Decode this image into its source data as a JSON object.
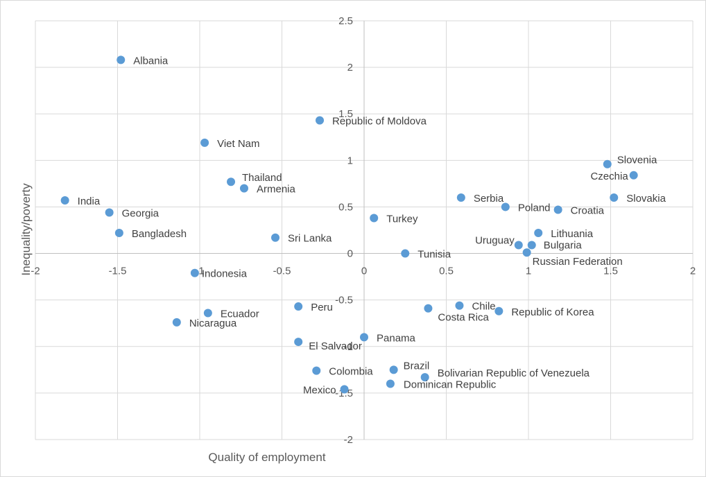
{
  "chart_data": {
    "type": "scatter",
    "title": "",
    "xlabel": "Quality of employment",
    "ylabel": "Inequality/poverty",
    "xlim": [
      -2,
      2
    ],
    "ylim": [
      -2,
      2.5
    ],
    "x_ticks": [
      "-2",
      "-1.5",
      "-1",
      "-0.5",
      "0",
      "0.5",
      "1",
      "1.5",
      "2"
    ],
    "y_ticks": [
      "2.5",
      "2",
      "1.5",
      "1",
      "0.5",
      "0",
      "-0.5",
      "-1",
      "-1.5",
      "-2"
    ],
    "grid": true,
    "marker_color": "#5b9bd5",
    "points": [
      {
        "label": "Albania",
        "x": -1.48,
        "y": 2.08
      },
      {
        "label": "Republic of Moldova",
        "x": -0.27,
        "y": 1.43
      },
      {
        "label": "Viet Nam",
        "x": -0.97,
        "y": 1.19
      },
      {
        "label": "Thailand",
        "x": -0.81,
        "y": 0.77
      },
      {
        "label": "Armenia",
        "x": -0.73,
        "y": 0.7
      },
      {
        "label": "India",
        "x": -1.82,
        "y": 0.57
      },
      {
        "label": "Georgia",
        "x": -1.55,
        "y": 0.44
      },
      {
        "label": "Bangladesh",
        "x": -1.49,
        "y": 0.22
      },
      {
        "label": "Sri Lanka",
        "x": -0.54,
        "y": 0.17
      },
      {
        "label": "Turkey",
        "x": 0.06,
        "y": 0.38
      },
      {
        "label": "Tunisia",
        "x": 0.25,
        "y": 0.0
      },
      {
        "label": "Serbia",
        "x": 0.59,
        "y": 0.6
      },
      {
        "label": "Poland",
        "x": 0.86,
        "y": 0.5
      },
      {
        "label": "Croatia",
        "x": 1.18,
        "y": 0.47
      },
      {
        "label": "Slovenia",
        "x": 1.48,
        "y": 0.96
      },
      {
        "label": "Czechia",
        "x": 1.64,
        "y": 0.84
      },
      {
        "label": "Slovakia",
        "x": 1.52,
        "y": 0.6
      },
      {
        "label": "Lithuania",
        "x": 1.06,
        "y": 0.22
      },
      {
        "label": "Uruguay",
        "x": 0.94,
        "y": 0.09
      },
      {
        "label": "Bulgaria",
        "x": 1.02,
        "y": 0.09
      },
      {
        "label": "Russian Federation",
        "x": 0.99,
        "y": 0.01
      },
      {
        "label": "Indonesia",
        "x": -1.03,
        "y": -0.21
      },
      {
        "label": "Peru",
        "x": -0.4,
        "y": -0.57
      },
      {
        "label": "Ecuador",
        "x": -0.95,
        "y": -0.64
      },
      {
        "label": "Nicaragua",
        "x": -1.14,
        "y": -0.74
      },
      {
        "label": "El Salvador",
        "x": -0.4,
        "y": -0.95
      },
      {
        "label": "Panama",
        "x": 0.0,
        "y": -0.9
      },
      {
        "label": "Chile",
        "x": 0.58,
        "y": -0.56
      },
      {
        "label": "Costa Rica",
        "x": 0.39,
        "y": -0.59
      },
      {
        "label": "Republic of Korea",
        "x": 0.82,
        "y": -0.62
      },
      {
        "label": "Colombia",
        "x": -0.29,
        "y": -1.26
      },
      {
        "label": "Brazil",
        "x": 0.18,
        "y": -1.25
      },
      {
        "label": "Bolivarian Republic of Venezuela",
        "x": 0.37,
        "y": -1.33
      },
      {
        "label": "Dominican Republic",
        "x": 0.16,
        "y": -1.4
      },
      {
        "label": "Mexico",
        "x": -0.12,
        "y": -1.46
      }
    ]
  }
}
